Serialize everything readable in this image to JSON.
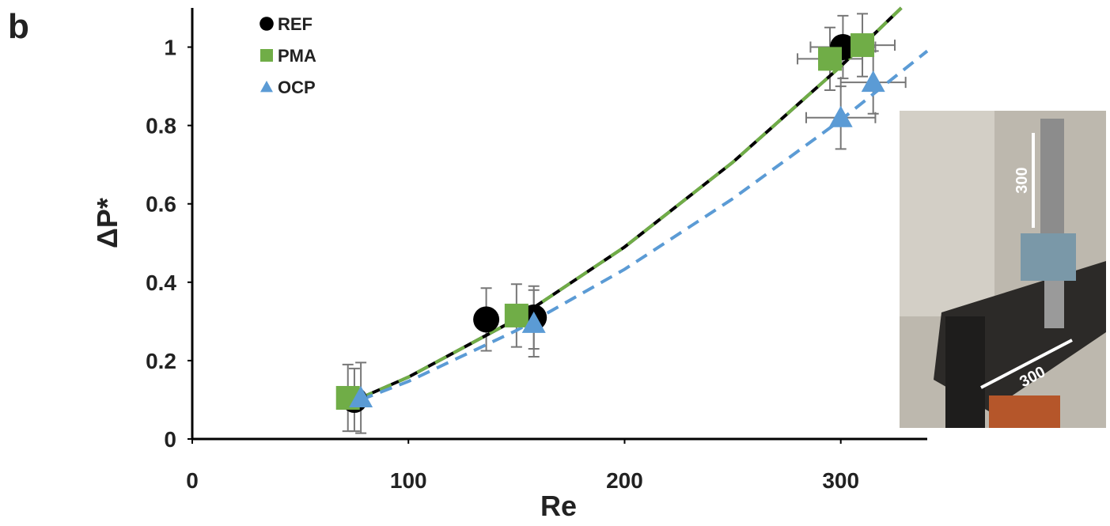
{
  "panel_label": "b",
  "chart_data": {
    "type": "scatter",
    "xlabel": "Re",
    "ylabel": "ΔP*",
    "xlim": [
      0,
      340
    ],
    "ylim": [
      0,
      1.1
    ],
    "xticks": [
      0,
      100,
      200,
      300
    ],
    "yticks": [
      0,
      0.2,
      0.4,
      0.6,
      0.8,
      1
    ],
    "series": [
      {
        "name": "REF",
        "color": "#000000",
        "marker": "circle",
        "x": [
          75,
          136,
          158,
          301
        ],
        "y": [
          0.1,
          0.305,
          0.31,
          1.0
        ],
        "yerr": [
          0.08,
          0.08,
          0.08,
          0.08
        ],
        "xerr": [
          null,
          null,
          null,
          15
        ]
      },
      {
        "name": "PMA",
        "color": "#70ad47",
        "marker": "square",
        "x": [
          72,
          150,
          295,
          310
        ],
        "y": [
          0.105,
          0.315,
          0.97,
          1.005
        ],
        "yerr": [
          0.085,
          0.08,
          0.08,
          0.08
        ],
        "xerr": [
          null,
          null,
          15,
          15
        ]
      },
      {
        "name": "OCP",
        "color": "#5b9bd5",
        "marker": "triangle",
        "x": [
          78,
          158,
          300,
          315
        ],
        "y": [
          0.105,
          0.295,
          0.82,
          0.91
        ],
        "yerr": [
          0.09,
          0.085,
          0.08,
          0.08
        ],
        "xerr": [
          null,
          null,
          16,
          15
        ]
      }
    ],
    "fits": [
      {
        "color": "#000000",
        "dash": false,
        "x": [
          78,
          100,
          150,
          200,
          250,
          300,
          328
        ],
        "y": [
          0.105,
          0.158,
          0.306,
          0.49,
          0.706,
          0.951,
          1.1
        ]
      },
      {
        "color": "#70ad47",
        "dash": true,
        "x": [
          78,
          100,
          150,
          200,
          250,
          300,
          328
        ],
        "y": [
          0.105,
          0.158,
          0.306,
          0.49,
          0.706,
          0.951,
          1.1
        ]
      },
      {
        "color": "#5b9bd5",
        "dash": true,
        "x": [
          78,
          100,
          150,
          200,
          250,
          300,
          340
        ],
        "y": [
          0.1,
          0.147,
          0.277,
          0.433,
          0.613,
          0.814,
          0.99
        ]
      }
    ]
  },
  "inset": {
    "labels": [
      "300",
      "300"
    ]
  }
}
